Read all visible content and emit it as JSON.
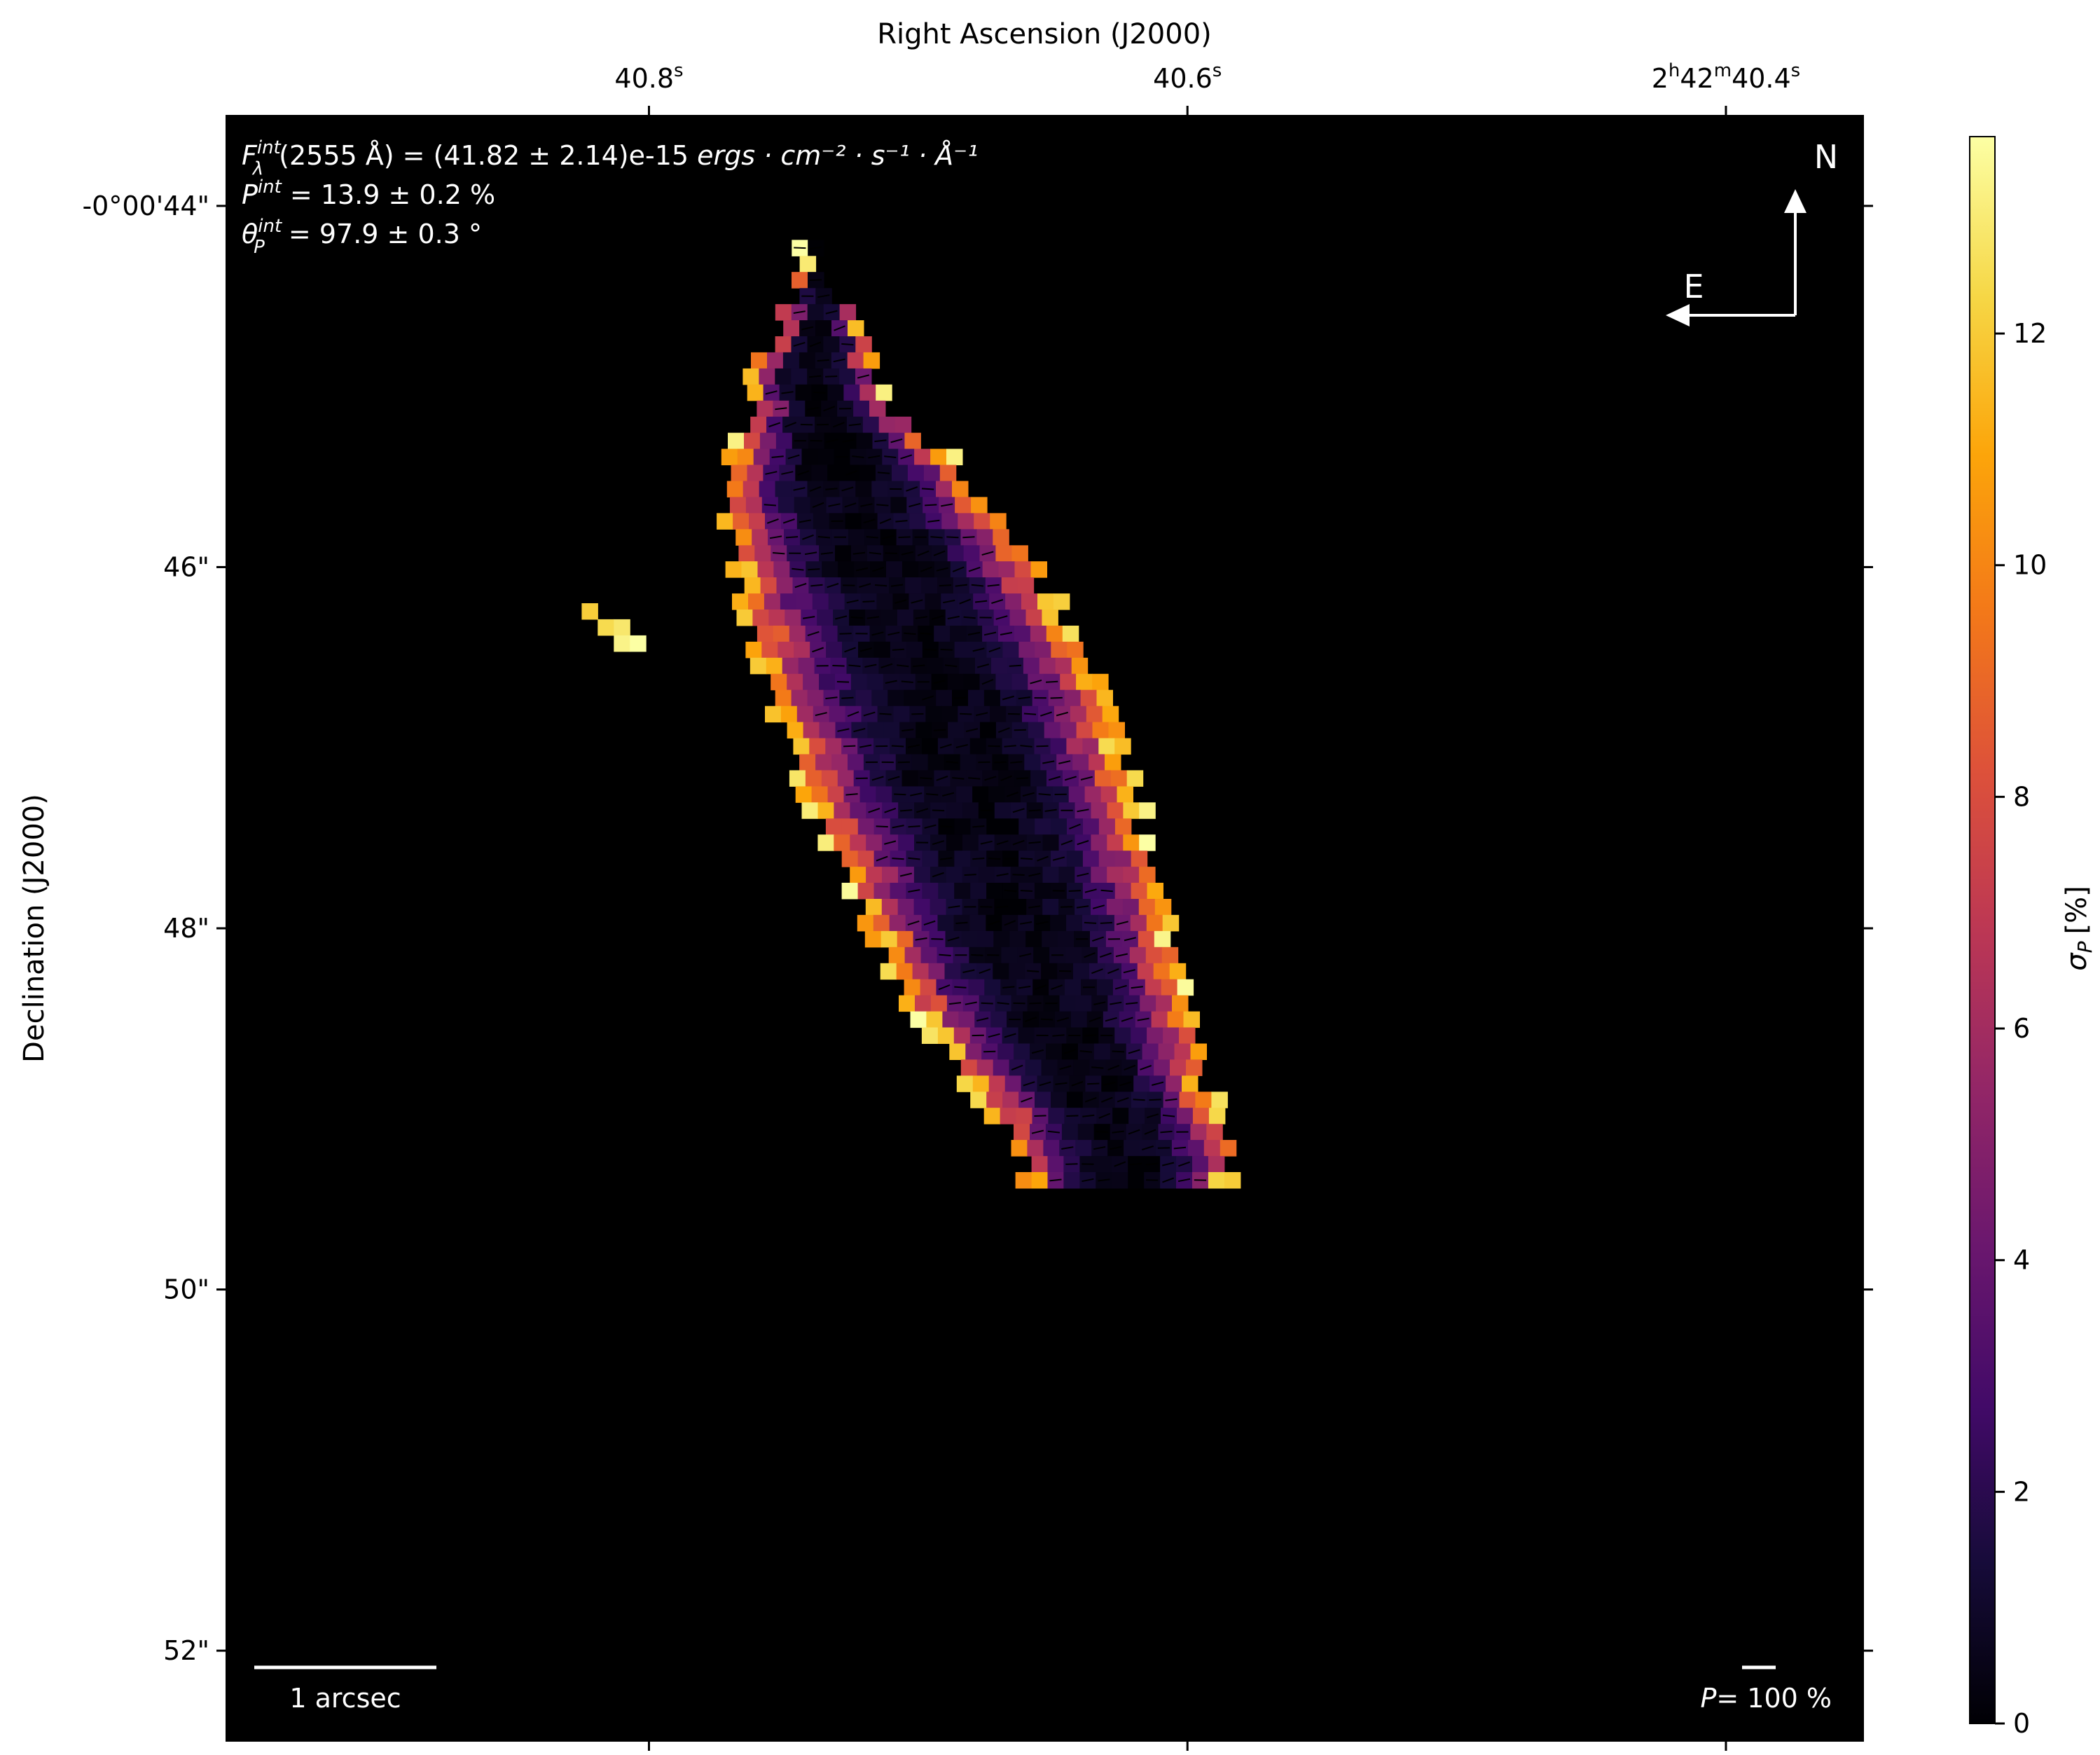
{
  "chart_data": {
    "type": "heatmap",
    "title": "",
    "xlabel": "Right Ascension (J2000)",
    "ylabel": "Declination (J2000)",
    "x_ticks": [
      {
        "value": 40.8,
        "label": "40.8",
        "sup": "s"
      },
      {
        "value": 40.6,
        "label": "40.6",
        "sup": "s"
      },
      {
        "value": 40.4,
        "label_parts": [
          "2",
          "h",
          "42",
          "m",
          "40.4",
          "s"
        ]
      }
    ],
    "y_ticks": [
      {
        "value": 44,
        "label": "-0°00'44\""
      },
      {
        "value": 46,
        "label": "46\""
      },
      {
        "value": 48,
        "label": "48\""
      },
      {
        "value": 50,
        "label": "50\""
      },
      {
        "value": 52,
        "label": "52\""
      }
    ],
    "x_range_seconds": [
      40.957,
      40.349
    ],
    "y_range_arcsec": [
      43.5,
      52.5
    ],
    "colorbar": {
      "label": "σ",
      "label_sub": "P",
      "label_unit": "[%]",
      "colormap": "inferno",
      "range": [
        0,
        13.7
      ],
      "ticks": [
        0,
        2,
        4,
        6,
        8,
        10,
        12
      ]
    },
    "annotations": {
      "flux": {
        "sym": "F",
        "sup": "int",
        "sub": "λ",
        "text": "(2555 Å) = (41.82 ± 2.14)e-15 ",
        "units": "ergs · cm⁻² · s⁻¹ · Å⁻¹"
      },
      "pol": {
        "sym": "P",
        "sup": "int",
        "text": " = 13.9 ± 0.2 %"
      },
      "angle": {
        "sym": "θ",
        "sup": "int",
        "sub": "P",
        "text": " = 97.9 ± 0.3 °"
      }
    },
    "compass": {
      "north": "N",
      "east": "E"
    },
    "scale_bar": "1 arcsec",
    "pol_scale": {
      "sym": "P",
      "text": "= 100 %"
    },
    "background_color": "#000000",
    "source_sigma_map": {
      "cell_arcsec": 0.089,
      "ridge_ra_seconds": [
        40.741,
        40.729,
        40.711,
        40.695,
        40.681,
        40.669,
        40.657,
        40.641,
        40.625
      ],
      "ridge_dec_arcsec": [
        44.9,
        45.5,
        46.1,
        46.7,
        47.3,
        47.8,
        48.3,
        48.8,
        49.2
      ],
      "ridge_half_width_arcsec": [
        0.3,
        0.72,
        0.88,
        0.95,
        0.93,
        0.86,
        0.8,
        0.68,
        0.58
      ],
      "sigma_core_pct": 0.4,
      "sigma_edge_pct": 13.7,
      "vector_angle_deg": 97.9
    }
  }
}
